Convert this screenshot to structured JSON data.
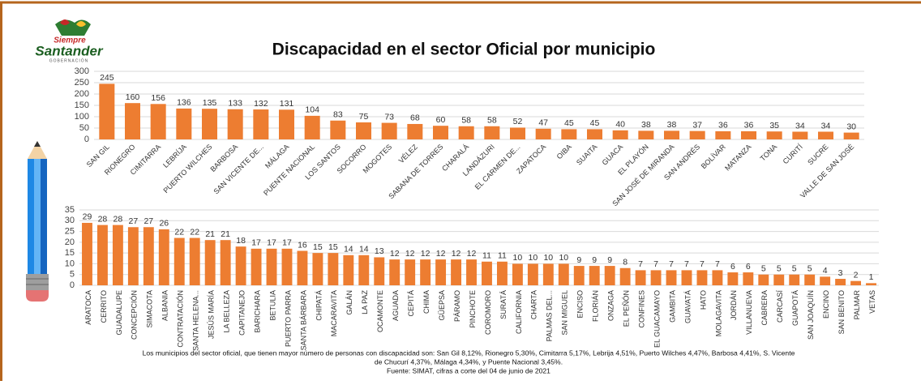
{
  "title": "Discapacidad en el sector Oficial por municipio",
  "logo": {
    "line1": "Siempre",
    "line2": "Santander",
    "line3": "GOBERNACIÓN"
  },
  "chart_data": [
    {
      "type": "bar",
      "color": "#ED7D31",
      "grid": true,
      "categories": [
        "SAN GIL",
        "RIONEGRO",
        "CIMITARRA",
        "LEBRÍJA",
        "PUERTO WILCHES",
        "BARBOSA",
        "SAN VICENTE DE...",
        "MÁLAGA",
        "PUENTE NACIONAL",
        "LOS SANTOS",
        "SOCORRO",
        "MOGOTES",
        "VÉLEZ",
        "SABANA DE TORRES",
        "CHARALÁ",
        "LANDÁZURI",
        "EL CARMEN DE...",
        "ZAPATOCA",
        "OIBA",
        "SUAITA",
        "GUACA",
        "EL PLAYÓN",
        "SAN JOSÉ DE MIRANDA",
        "SAN ANDRÉS",
        "BOLÍVAR",
        "MATANZA",
        "TONA",
        "CURITÍ",
        "SUCRE",
        "VALLE DE SAN JOSÉ"
      ],
      "values": [
        245,
        160,
        156,
        136,
        135,
        133,
        132,
        131,
        104,
        83,
        75,
        73,
        68,
        60,
        58,
        58,
        52,
        47,
        45,
        45,
        40,
        38,
        38,
        37,
        36,
        36,
        35,
        34,
        34,
        30
      ],
      "ylim": [
        0,
        300
      ],
      "yticks": [
        0,
        50,
        100,
        150,
        200,
        250,
        300
      ]
    },
    {
      "type": "bar",
      "color": "#ED7D31",
      "grid": true,
      "categories": [
        "ARATOCA",
        "CERRITO",
        "GUADALUPE",
        "CONCEPCIÓN",
        "SIMACOTA",
        "ALBANIA",
        "CONTRATACIÓN",
        "SANTA HELENA...",
        "JESÚS MARÍA",
        "LA BELLEZA",
        "CAPITANEJO",
        "BARICHARA",
        "BETULIA",
        "PUERTO PARRA",
        "SANTA BÁRBARA",
        "CHIPATÁ",
        "MACARAVITA",
        "GALÁN",
        "LA PAZ",
        "OCAMONTE",
        "AGUADA",
        "CEPITÁ",
        "CHIMA",
        "GÜEPSA",
        "PÁRAMO",
        "PINCHOTE",
        "COROMORO",
        "SURATÁ",
        "CALIFORNIA",
        "CHARTA",
        "PALMAS DEL...",
        "SAN MIGUEL",
        "ENCISO",
        "FLORIÁN",
        "ONZAGA",
        "EL PEÑÓN",
        "CONFINES",
        "EL GUACAMAYO",
        "GAMBITA",
        "GUAVATÁ",
        "HATO",
        "MOLAGAVITA",
        "JORDÁN",
        "VILLANUEVA",
        "CABRERA",
        "CARCASÍ",
        "GUAPOTÁ",
        "SAN JOAQUÍN",
        "ENCINO",
        "SAN BENITO",
        "PALMAR",
        "VETAS"
      ],
      "values": [
        29,
        28,
        28,
        27,
        27,
        26,
        22,
        22,
        21,
        21,
        18,
        17,
        17,
        17,
        16,
        15,
        15,
        14,
        14,
        13,
        12,
        12,
        12,
        12,
        12,
        12,
        11,
        11,
        10,
        10,
        10,
        10,
        9,
        9,
        9,
        8,
        7,
        7,
        7,
        7,
        7,
        7,
        6,
        6,
        5,
        5,
        5,
        5,
        4,
        3,
        2,
        1
      ],
      "ylim": [
        0,
        35
      ],
      "yticks": [
        0,
        5,
        10,
        15,
        20,
        25,
        30,
        35
      ]
    }
  ],
  "notes": [
    "Los municipios del sector oficial, que tienen mayor número de personas con discapacidad son: San Gil 8,12%, Rionegro 5,30%, Cimitarra 5,17%, Lebrija 4,51%, Puerto Wilches 4,47%, Barbosa 4,41%, S. Vicente",
    "de Chucurí 4,37%, Málaga 4,34%, y Puente Nacional 3,45%.",
    "Fuente: SIMAT, cifras a corte del 04 de junio de 2021"
  ]
}
